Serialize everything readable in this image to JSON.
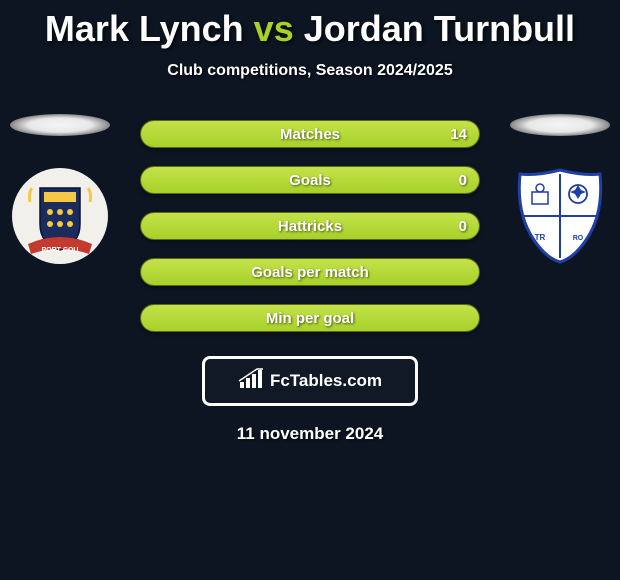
{
  "title": {
    "player1": "Mark Lynch",
    "vs": "vs",
    "player2": "Jordan Turnbull",
    "player1_color": "#ffffff",
    "vs_color": "#a7d129",
    "player2_color": "#ffffff",
    "fontsize": 36
  },
  "subtitle": "Club competitions, Season 2024/2025",
  "background_color": "#0c1521",
  "bar_colors": {
    "fill": "#a7d129",
    "fill_light": "#c4e24a",
    "track": "#7a8a1f",
    "border": "#5b6817"
  },
  "stats": [
    {
      "label": "Matches",
      "left_value": "",
      "right_value": "14",
      "left_pct": 5,
      "right_pct": 95,
      "mode": "right"
    },
    {
      "label": "Goals",
      "left_value": "",
      "right_value": "0",
      "left_pct": 50,
      "right_pct": 50,
      "mode": "full"
    },
    {
      "label": "Hattricks",
      "left_value": "",
      "right_value": "0",
      "left_pct": 50,
      "right_pct": 50,
      "mode": "full"
    },
    {
      "label": "Goals per match",
      "left_value": "",
      "right_value": "",
      "left_pct": 50,
      "right_pct": 50,
      "mode": "full"
    },
    {
      "label": "Min per goal",
      "left_value": "",
      "right_value": "",
      "left_pct": 50,
      "right_pct": 50,
      "mode": "full"
    }
  ],
  "footer": {
    "brand": "FcTables.com",
    "icon": "bar-chart-icon"
  },
  "date": "11 november 2024",
  "crest_left": {
    "name": "stockport-county-crest",
    "bg": "#f2f0ea",
    "shield": "#1a2b5c",
    "accent": "#f6c945",
    "banner": "#c43a2f"
  },
  "crest_right": {
    "name": "tranmere-rovers-crest",
    "bg": "#ffffff",
    "primary": "#1f3fa6",
    "border": "#1f3fa6"
  }
}
